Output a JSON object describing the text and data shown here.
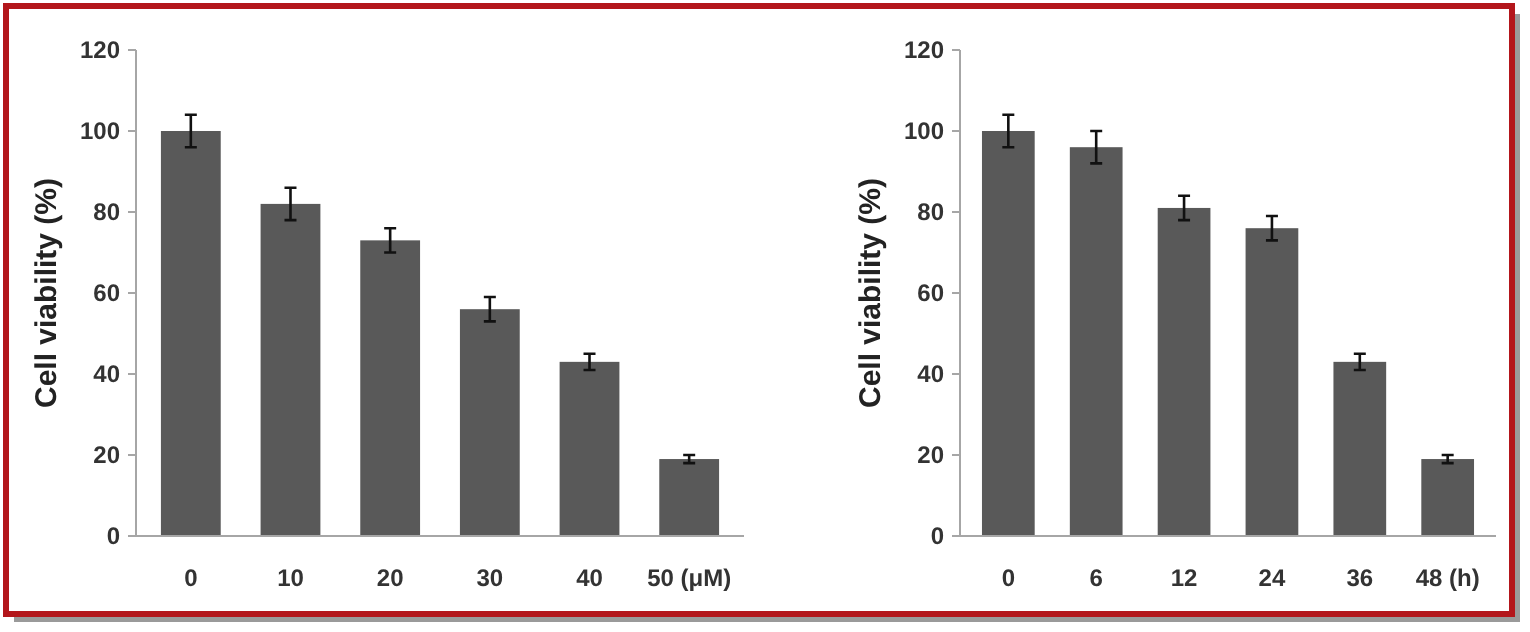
{
  "chart_data": [
    {
      "type": "bar",
      "ylabel": "Cell viability (%)",
      "categories": [
        "0",
        "10",
        "20",
        "30",
        "40",
        "50 (μM)"
      ],
      "values": [
        100,
        82,
        73,
        56,
        43,
        19
      ],
      "errors": [
        4,
        4,
        3,
        3,
        2,
        1
      ],
      "color": "#595959",
      "ylim": [
        0,
        120
      ],
      "yticks": [
        0,
        20,
        40,
        60,
        80,
        100,
        120
      ],
      "grid": false
    },
    {
      "type": "bar",
      "ylabel": "Cell viability (%)",
      "categories": [
        "0",
        "6",
        "12",
        "24",
        "36",
        "48 (h)"
      ],
      "values": [
        100,
        96,
        81,
        76,
        43,
        19
      ],
      "errors": [
        4,
        4,
        3,
        3,
        2,
        1
      ],
      "color": "#595959",
      "ylim": [
        0,
        120
      ],
      "yticks": [
        0,
        20,
        40,
        60,
        80,
        100,
        120
      ],
      "grid": false
    }
  ]
}
